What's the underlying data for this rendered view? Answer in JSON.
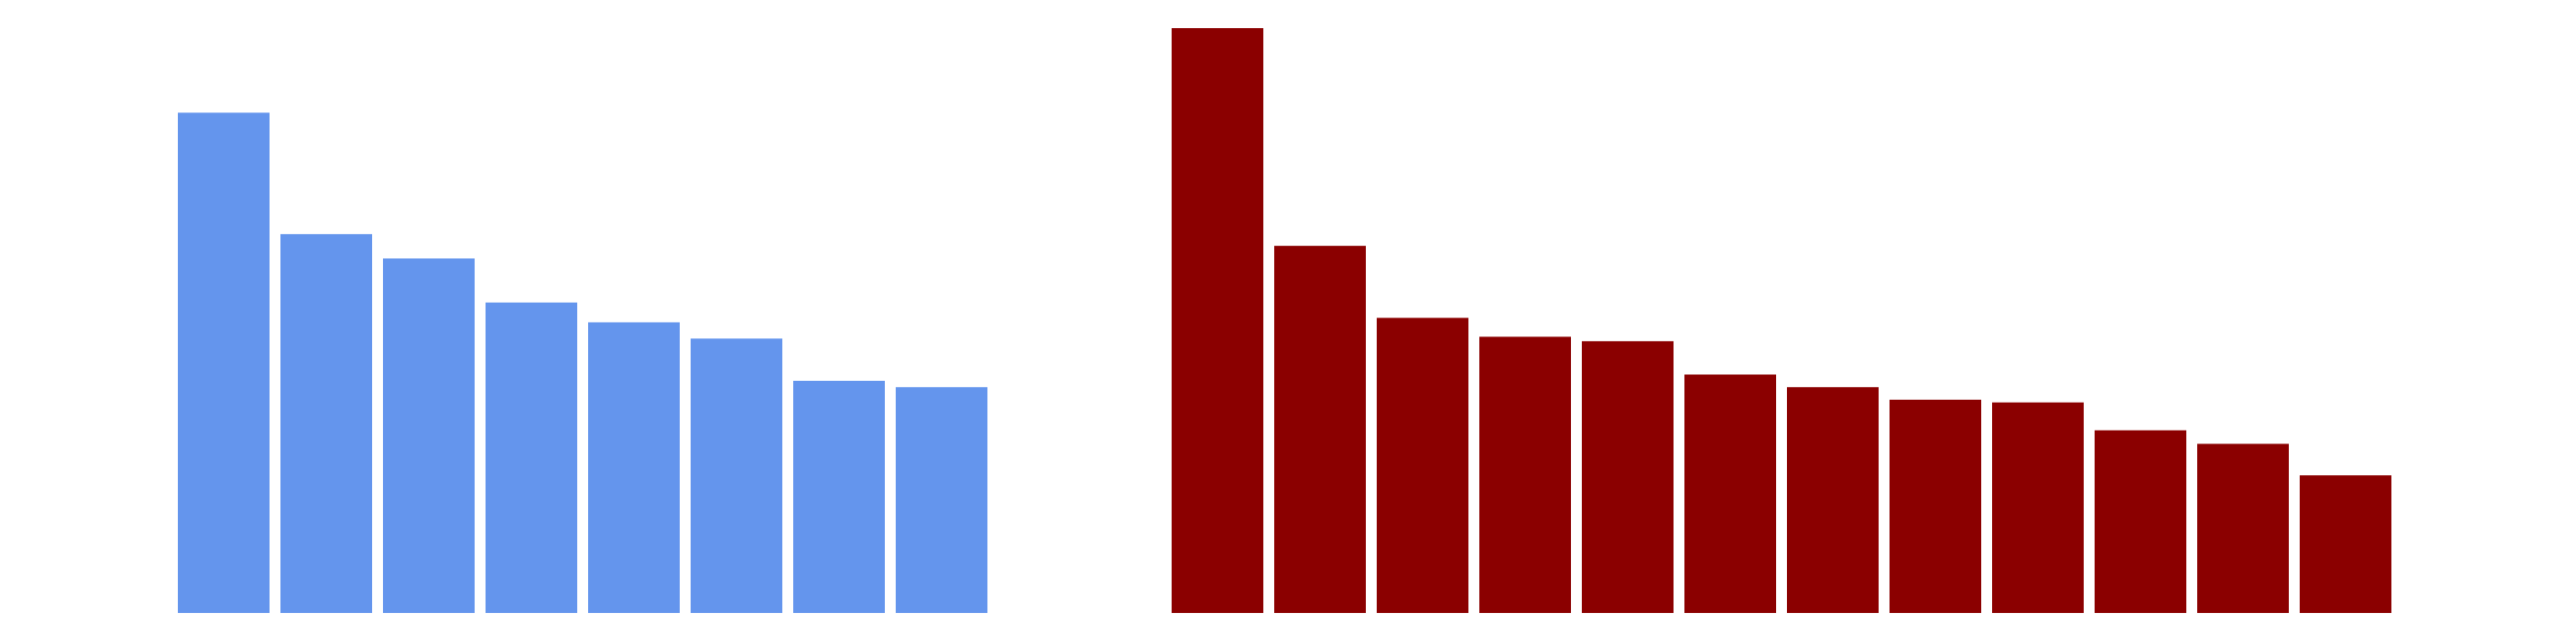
{
  "chart_data": [
    {
      "type": "bar",
      "values": [
        556,
        421,
        394,
        345,
        323,
        305,
        258,
        251
      ],
      "ylim": [
        0,
        650
      ],
      "grid": false,
      "color": "#6495ED"
    },
    {
      "type": "bar",
      "values": [
        650,
        408,
        328,
        307,
        302,
        265,
        251,
        237,
        234,
        203,
        188,
        153
      ],
      "ylim": [
        0,
        650
      ],
      "grid": false,
      "color": "#8B0000"
    }
  ]
}
